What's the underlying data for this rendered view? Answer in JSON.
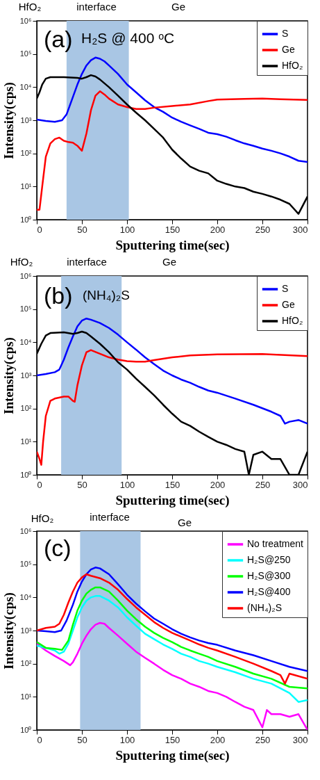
{
  "chart_data": [
    {
      "type": "line",
      "xlabel": "Sputtering time(sec)",
      "ylabel": "Intensity(cps)",
      "annotations": [
        "HfO₂",
        "interface",
        "Ge",
        "(a)",
        "H₂S @ 400 ᵒC"
      ],
      "xlim": [
        0,
        300
      ],
      "xticks": [
        0,
        50,
        100,
        150,
        200,
        250,
        300
      ],
      "ylim": [
        1,
        1000000
      ],
      "log": true,
      "yticks": [
        {
          "value": 1,
          "label": "10⁰"
        },
        {
          "value": 10,
          "label": "10¹"
        },
        {
          "value": 100,
          "label": "10²"
        },
        {
          "value": 1000,
          "label": "10³"
        },
        {
          "value": 10000,
          "label": "10⁴"
        },
        {
          "value": 100000,
          "label": "10⁵"
        },
        {
          "value": 1000000,
          "label": "10⁶"
        }
      ],
      "grid": false,
      "legend": "top right",
      "marker": "none",
      "line_style": "solid",
      "bands": [
        {
          "axis": "x",
          "from": 33,
          "to": 102,
          "color": "#a9c6e4"
        }
      ],
      "series": [
        {
          "name": "S",
          "color": "#0000ff",
          "x": [
            0,
            10,
            20,
            28,
            33,
            40,
            45,
            50,
            55,
            60,
            65,
            70,
            75,
            80,
            90,
            100,
            110,
            120,
            130,
            140,
            150,
            160,
            170,
            180,
            190,
            200,
            210,
            220,
            230,
            240,
            250,
            260,
            270,
            280,
            290,
            300
          ],
          "values": [
            1050,
            950,
            900,
            1000,
            1500,
            5000,
            12000,
            25000,
            45000,
            65000,
            78000,
            72000,
            60000,
            45000,
            25000,
            12000,
            7000,
            4000,
            2500,
            1800,
            1200,
            900,
            700,
            550,
            420,
            380,
            320,
            250,
            200,
            170,
            140,
            120,
            100,
            80,
            60,
            55
          ]
        },
        {
          "name": "Ge",
          "color": "#ff0000",
          "x": [
            0,
            3,
            6,
            10,
            15,
            20,
            25,
            30,
            35,
            40,
            45,
            50,
            55,
            60,
            65,
            70,
            75,
            80,
            90,
            100,
            110,
            120,
            130,
            150,
            170,
            190,
            200,
            230,
            250,
            270,
            300
          ],
          "values": [
            2,
            2,
            10,
            80,
            200,
            270,
            300,
            240,
            220,
            210,
            170,
            120,
            400,
            2000,
            5500,
            7500,
            6000,
            4500,
            3000,
            2500,
            2200,
            2200,
            2400,
            2700,
            3000,
            3800,
            4200,
            4400,
            4500,
            4300,
            4100
          ]
        },
        {
          "name": "HfO₂",
          "color": "#000000",
          "x": [
            0,
            3,
            6,
            10,
            15,
            30,
            45,
            50,
            55,
            60,
            65,
            70,
            80,
            90,
            100,
            110,
            120,
            130,
            140,
            150,
            160,
            170,
            180,
            190,
            200,
            210,
            220,
            230,
            240,
            250,
            260,
            270,
            280,
            290,
            300
          ],
          "values": [
            4500,
            7000,
            12000,
            18000,
            20000,
            20000,
            19000,
            18000,
            20000,
            23000,
            21000,
            17000,
            10000,
            5500,
            3000,
            1700,
            1000,
            550,
            300,
            130,
            70,
            40,
            30,
            25,
            15,
            12,
            10,
            9,
            7,
            6,
            5,
            4,
            3,
            1.5,
            5
          ]
        }
      ]
    },
    {
      "type": "line",
      "xlabel": "Sputtering time(sec)",
      "ylabel": "Intensity(cps)",
      "annotations": [
        "HfO₂",
        "interface",
        "Ge",
        "(b)",
        "(NH₄)₂S"
      ],
      "xlim": [
        0,
        300
      ],
      "xticks": [
        0,
        50,
        100,
        150,
        200,
        250,
        300
      ],
      "ylim": [
        1,
        1000000
      ],
      "log": true,
      "yticks": [
        {
          "value": 1,
          "label": "10⁰"
        },
        {
          "value": 10,
          "label": "10¹"
        },
        {
          "value": 100,
          "label": "10²"
        },
        {
          "value": 1000,
          "label": "10³"
        },
        {
          "value": 10000,
          "label": "10⁴"
        },
        {
          "value": 100000,
          "label": "10⁵"
        },
        {
          "value": 1000000,
          "label": "10⁶"
        }
      ],
      "grid": false,
      "legend": "top right",
      "marker": "none",
      "line_style": "solid",
      "bands": [
        {
          "axis": "x",
          "from": 27,
          "to": 94,
          "color": "#a9c6e4"
        }
      ],
      "series": [
        {
          "name": "S",
          "color": "#0000ff",
          "x": [
            0,
            10,
            20,
            25,
            30,
            35,
            40,
            45,
            50,
            55,
            60,
            70,
            80,
            90,
            100,
            110,
            120,
            130,
            140,
            150,
            160,
            170,
            180,
            190,
            200,
            220,
            240,
            260,
            270,
            275,
            280,
            290,
            300
          ],
          "values": [
            1000,
            1100,
            1250,
            1500,
            3000,
            7000,
            15000,
            30000,
            45000,
            52000,
            48000,
            38000,
            27000,
            17000,
            10000,
            6000,
            3500,
            2200,
            1400,
            1000,
            750,
            600,
            450,
            350,
            300,
            200,
            130,
            80,
            60,
            35,
            40,
            45,
            35
          ]
        },
        {
          "name": "Ge",
          "color": "#ff0000",
          "x": [
            0,
            3,
            5,
            7,
            10,
            15,
            20,
            30,
            35,
            40,
            42,
            45,
            50,
            55,
            60,
            70,
            80,
            90,
            100,
            110,
            120,
            130,
            150,
            170,
            200,
            250,
            300
          ],
          "values": [
            5,
            3,
            2,
            10,
            60,
            170,
            200,
            230,
            230,
            170,
            160,
            500,
            2000,
            5000,
            5800,
            4500,
            3500,
            3000,
            2700,
            2600,
            2600,
            2900,
            3500,
            4000,
            4300,
            4400,
            3800
          ]
        },
        {
          "name": "HfO₂",
          "color": "#000000",
          "x": [
            0,
            5,
            10,
            15,
            30,
            40,
            45,
            50,
            55,
            60,
            70,
            80,
            90,
            100,
            110,
            120,
            130,
            140,
            150,
            160,
            170,
            180,
            190,
            200,
            210,
            220,
            230,
            235,
            240,
            250,
            260,
            270,
            280,
            290,
            300
          ],
          "values": [
            4500,
            9000,
            16000,
            19000,
            20000,
            18000,
            19000,
            21000,
            19000,
            15000,
            9000,
            5000,
            2500,
            1500,
            800,
            450,
            250,
            130,
            70,
            40,
            30,
            20,
            14,
            10,
            8,
            6,
            5,
            1,
            4,
            5,
            3,
            3,
            1,
            1,
            5
          ]
        }
      ]
    },
    {
      "type": "line",
      "xlabel": "Sputtering time(sec)",
      "ylabel": "Intensity(cps)",
      "annotations": [
        "HfO₂",
        "interface",
        "Ge",
        "(c)"
      ],
      "xlim": [
        0,
        300
      ],
      "xticks": [
        0,
        50,
        100,
        150,
        200,
        250,
        300
      ],
      "ylim": [
        1,
        1000000
      ],
      "log": true,
      "yticks": [
        {
          "value": 1,
          "label": "10⁰"
        },
        {
          "value": 10,
          "label": "10¹"
        },
        {
          "value": 100,
          "label": "10²"
        },
        {
          "value": 1000,
          "label": "10³"
        },
        {
          "value": 10000,
          "label": "10⁴"
        },
        {
          "value": 100000,
          "label": "10⁵"
        },
        {
          "value": 1000000,
          "label": "10⁶"
        }
      ],
      "grid": false,
      "legend": "top right",
      "marker": "none",
      "line_style": "solid",
      "bands": [
        {
          "axis": "x",
          "from": 48,
          "to": 115,
          "color": "#a9c6e4"
        }
      ],
      "series": [
        {
          "name": "No treatment",
          "color": "#ff00ff",
          "x": [
            0,
            10,
            20,
            30,
            37,
            40,
            45,
            50,
            55,
            60,
            65,
            70,
            75,
            80,
            90,
            100,
            110,
            120,
            130,
            140,
            150,
            160,
            170,
            180,
            190,
            200,
            210,
            220,
            230,
            240,
            250,
            255,
            260,
            270,
            280,
            290,
            300
          ],
          "values": [
            400,
            250,
            170,
            120,
            90,
            110,
            200,
            400,
            700,
            1100,
            1500,
            1700,
            1600,
            1200,
            700,
            400,
            230,
            150,
            100,
            65,
            45,
            35,
            25,
            20,
            15,
            13,
            10,
            7,
            5,
            4,
            1.2,
            4,
            3,
            3,
            2.5,
            3,
            1
          ]
        },
        {
          "name": "H₂S@250",
          "color": "#00ffff",
          "x": [
            0,
            10,
            20,
            25,
            30,
            35,
            40,
            45,
            50,
            55,
            60,
            65,
            70,
            80,
            90,
            100,
            110,
            120,
            130,
            140,
            150,
            160,
            170,
            180,
            190,
            200,
            220,
            240,
            260,
            280,
            290,
            300
          ],
          "values": [
            350,
            300,
            250,
            200,
            230,
            400,
            1000,
            2500,
            5000,
            8000,
            10000,
            11000,
            11000,
            8000,
            5000,
            2500,
            1400,
            800,
            550,
            380,
            280,
            200,
            160,
            120,
            100,
            80,
            55,
            35,
            25,
            13,
            7,
            8
          ]
        },
        {
          "name": "H₂S@300",
          "color": "#00ff00",
          "x": [
            0,
            10,
            20,
            28,
            35,
            40,
            45,
            50,
            55,
            60,
            65,
            70,
            80,
            90,
            100,
            110,
            120,
            130,
            140,
            150,
            160,
            170,
            180,
            190,
            200,
            220,
            240,
            260,
            280,
            300
          ],
          "values": [
            450,
            300,
            280,
            260,
            500,
            1500,
            4000,
            8000,
            13000,
            17000,
            20000,
            20000,
            15000,
            8000,
            4000,
            2200,
            1300,
            850,
            600,
            450,
            320,
            250,
            200,
            160,
            120,
            80,
            50,
            35,
            20,
            18
          ]
        },
        {
          "name": "H₂S@400",
          "color": "#0000ff",
          "x": [
            0,
            10,
            20,
            27,
            33,
            40,
            45,
            50,
            55,
            60,
            65,
            70,
            80,
            90,
            100,
            110,
            120,
            130,
            140,
            150,
            160,
            170,
            180,
            190,
            200,
            220,
            240,
            260,
            280,
            300
          ],
          "values": [
            1000,
            950,
            900,
            1000,
            2000,
            6000,
            15000,
            30000,
            50000,
            70000,
            80000,
            75000,
            50000,
            25000,
            12000,
            6500,
            3800,
            2300,
            1600,
            1100,
            800,
            620,
            500,
            420,
            370,
            250,
            180,
            120,
            80,
            60
          ]
        },
        {
          "name": "(NH₄)₂S",
          "color": "#ff0000",
          "x": [
            0,
            10,
            20,
            25,
            30,
            35,
            40,
            45,
            50,
            55,
            60,
            70,
            80,
            90,
            100,
            110,
            120,
            130,
            140,
            150,
            160,
            170,
            180,
            190,
            200,
            220,
            240,
            260,
            270,
            275,
            280,
            300
          ],
          "values": [
            1000,
            1200,
            1300,
            1600,
            3000,
            7000,
            15000,
            28000,
            40000,
            50000,
            45000,
            38000,
            28000,
            17000,
            9000,
            5000,
            3000,
            1800,
            1200,
            850,
            650,
            500,
            380,
            300,
            250,
            160,
            100,
            60,
            45,
            25,
            50,
            35
          ]
        }
      ]
    }
  ]
}
